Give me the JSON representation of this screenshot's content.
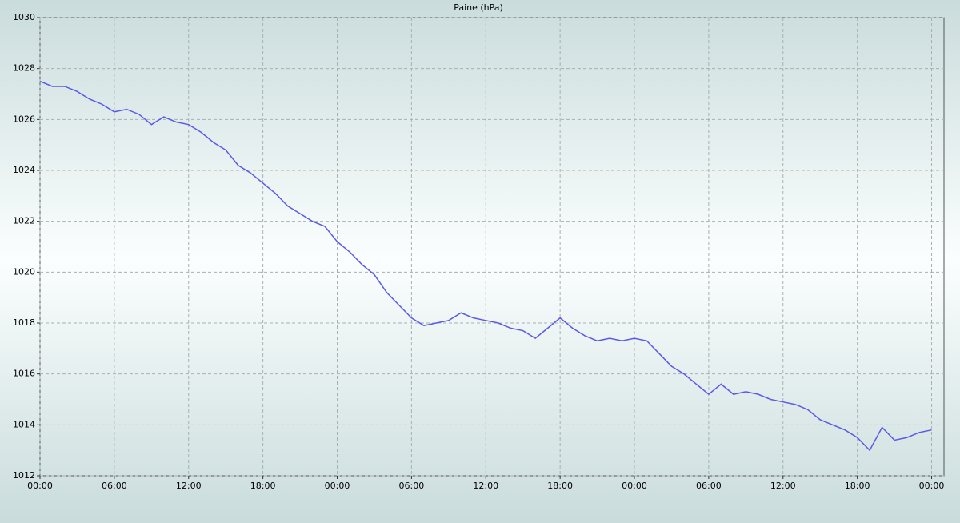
{
  "chart_data": {
    "type": "line",
    "title": "Paine (hPa)",
    "x": [
      0,
      1,
      2,
      3,
      4,
      5,
      6,
      7,
      8,
      9,
      10,
      11,
      12,
      13,
      14,
      15,
      16,
      17,
      18,
      19,
      20,
      21,
      22,
      23,
      24,
      25,
      26,
      27,
      28,
      29,
      30,
      31,
      32,
      33,
      34,
      35,
      36,
      37,
      38,
      39,
      40,
      41,
      42,
      43,
      44,
      45,
      46,
      47,
      48,
      49,
      50,
      51,
      52,
      53,
      54,
      55,
      56,
      57,
      58,
      59,
      60,
      61,
      62,
      63,
      64,
      65,
      66,
      67,
      68,
      69,
      70,
      71,
      72
    ],
    "series": [
      {
        "name": "Paine",
        "color": "#5a5ae6",
        "values": [
          1027.5,
          1027.3,
          1027.3,
          1027.1,
          1026.8,
          1026.6,
          1026.3,
          1026.4,
          1026.2,
          1025.8,
          1026.1,
          1025.9,
          1025.8,
          1025.5,
          1025.1,
          1024.8,
          1024.2,
          1023.9,
          1023.5,
          1023.1,
          1022.6,
          1022.3,
          1022.0,
          1021.8,
          1021.2,
          1020.8,
          1020.3,
          1019.9,
          1019.2,
          1018.7,
          1018.2,
          1017.9,
          1018.0,
          1018.1,
          1018.4,
          1018.2,
          1018.1,
          1018.0,
          1017.8,
          1017.7,
          1017.4,
          1017.8,
          1018.2,
          1017.8,
          1017.5,
          1017.3,
          1017.4,
          1017.3,
          1017.4,
          1017.3,
          1016.8,
          1016.3,
          1016.0,
          1015.6,
          1015.2,
          1015.6,
          1015.2,
          1015.3,
          1015.2,
          1015.0,
          1014.9,
          1014.8,
          1014.6,
          1014.2,
          1014.0,
          1013.8,
          1013.5,
          1013.0,
          1013.9,
          1013.4,
          1013.5,
          1013.7,
          1013.8
        ]
      }
    ],
    "xlim": [
      0,
      73
    ],
    "xticks": [
      {
        "value": 0,
        "label": "00:00"
      },
      {
        "value": 6,
        "label": "06:00"
      },
      {
        "value": 12,
        "label": "12:00"
      },
      {
        "value": 18,
        "label": "18:00"
      },
      {
        "value": 24,
        "label": "00:00"
      },
      {
        "value": 30,
        "label": "06:00"
      },
      {
        "value": 36,
        "label": "12:00"
      },
      {
        "value": 42,
        "label": "18:00"
      },
      {
        "value": 48,
        "label": "00:00"
      },
      {
        "value": 54,
        "label": "06:00"
      },
      {
        "value": 60,
        "label": "12:00"
      },
      {
        "value": 66,
        "label": "18:00"
      },
      {
        "value": 72,
        "label": "00:00"
      }
    ],
    "ylim": [
      1012,
      1030
    ],
    "yticks": [
      1012,
      1014,
      1016,
      1018,
      1020,
      1022,
      1024,
      1026,
      1028,
      1030
    ],
    "grid": true
  }
}
